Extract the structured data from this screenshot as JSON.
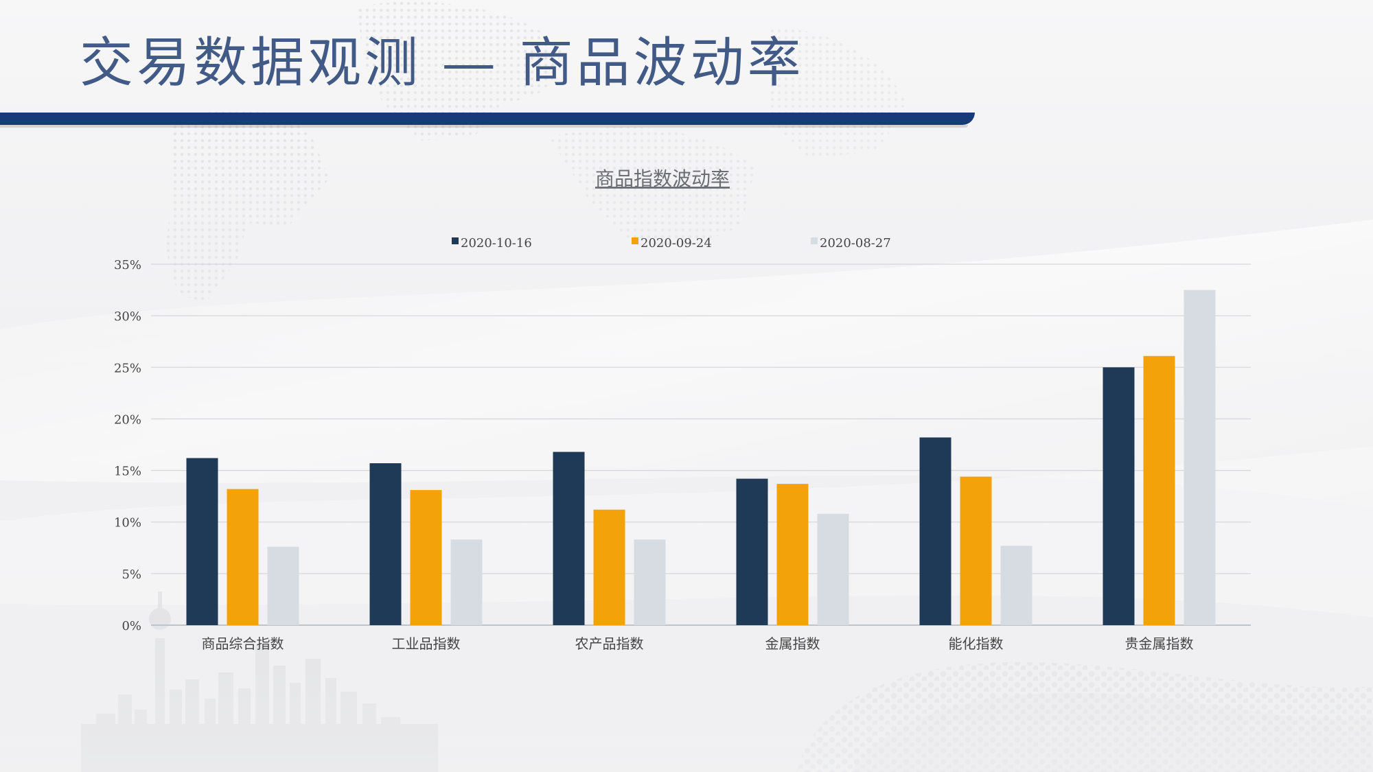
{
  "slide": {
    "title": "交易数据观测 — 商品波动率"
  },
  "colors": {
    "title": "#425a86",
    "title_bar": "#173a78",
    "series_1": "#1f3a56",
    "series_2": "#f4a20a",
    "series_3": "#d7dce3",
    "axis_text": "#444444",
    "grid": "#d5d7da"
  },
  "chart_data": {
    "type": "bar",
    "title": "商品指数波动率",
    "xlabel": "",
    "ylabel": "",
    "categories": [
      "商品综合指数",
      "工业品指数",
      "农产品指数",
      "金属指数",
      "能化指数",
      "贵金属指数"
    ],
    "series": [
      {
        "name": "2020-10-16",
        "values": [
          16.2,
          15.7,
          16.8,
          14.2,
          18.2,
          25.0
        ]
      },
      {
        "name": "2020-09-24",
        "values": [
          13.2,
          13.1,
          11.2,
          13.7,
          14.4,
          26.1
        ]
      },
      {
        "name": "2020-08-27",
        "values": [
          7.6,
          8.3,
          8.3,
          10.8,
          7.7,
          32.5
        ]
      }
    ],
    "ylim": [
      0,
      35
    ],
    "yticks": [
      0,
      5,
      10,
      15,
      20,
      25,
      30,
      35
    ],
    "y_tick_labels": [
      "0%",
      "5%",
      "10%",
      "15%",
      "20%",
      "25%",
      "30%",
      "35%"
    ],
    "grid": true,
    "legend_position": "top"
  }
}
